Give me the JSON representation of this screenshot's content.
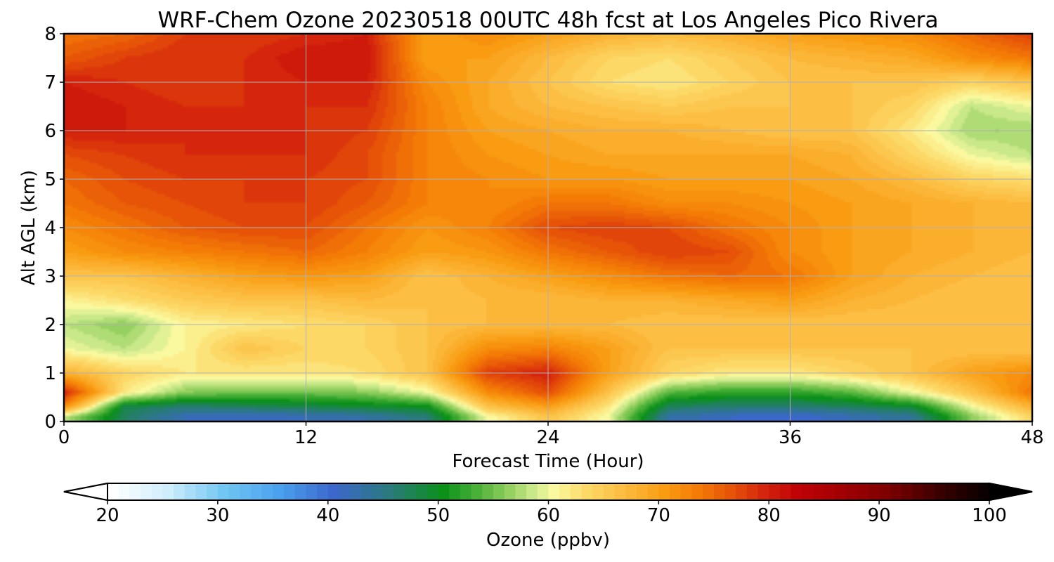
{
  "chart_data": {
    "type": "heatmap",
    "title": "WRF-Chem Ozone  20230518 00UTC 48h fcst at Los Angeles Pico Rivera",
    "xlabel": "Forecast Time (Hour)",
    "ylabel": "Alt AGL (km)",
    "xlim": [
      0,
      48
    ],
    "ylim": [
      0,
      8
    ],
    "xticks": [
      0,
      12,
      24,
      36,
      48
    ],
    "yticks": [
      0,
      1,
      2,
      3,
      4,
      5,
      6,
      7,
      8
    ],
    "grid": true,
    "x": [
      0,
      3,
      6,
      9,
      12,
      15,
      18,
      21,
      24,
      27,
      30,
      33,
      36,
      39,
      42,
      45,
      48
    ],
    "y": [
      0.1,
      0.3,
      0.6,
      1.0,
      1.5,
      2.0,
      2.5,
      3.0,
      3.5,
      4.0,
      4.5,
      5.0,
      5.5,
      6.0,
      6.5,
      7.0,
      7.5,
      8.0
    ],
    "values": [
      [
        58,
        47,
        42,
        41,
        42,
        43,
        46,
        60,
        66,
        60,
        43,
        41,
        40,
        42,
        44,
        56,
        64
      ],
      [
        72,
        48,
        46,
        47,
        48,
        49,
        50,
        66,
        70,
        62,
        47,
        46,
        46,
        47,
        49,
        60,
        68
      ],
      [
        80,
        62,
        56,
        55,
        55,
        56,
        60,
        72,
        77,
        66,
        54,
        52,
        52,
        54,
        60,
        66,
        74
      ],
      [
        68,
        64,
        62,
        62,
        62,
        63,
        66,
        78,
        80,
        70,
        64,
        62,
        62,
        64,
        66,
        70,
        72
      ],
      [
        60,
        58,
        61,
        66,
        64,
        64,
        66,
        72,
        73,
        70,
        66,
        66,
        66,
        66,
        66,
        66,
        66
      ],
      [
        58,
        56,
        61,
        62,
        63,
        64,
        66,
        67,
        67,
        67,
        66,
        66,
        66,
        66,
        66,
        66,
        66
      ],
      [
        61,
        63,
        65,
        66,
        66,
        67,
        66,
        67,
        67,
        68,
        68,
        69,
        70,
        68,
        67,
        66,
        66
      ],
      [
        66,
        66,
        68,
        70,
        71,
        70,
        66,
        68,
        70,
        72,
        74,
        75,
        74,
        70,
        68,
        67,
        66
      ],
      [
        70,
        72,
        73,
        74,
        75,
        73,
        70,
        71,
        74,
        76,
        78,
        77,
        72,
        70,
        69,
        68,
        67
      ],
      [
        72,
        74,
        76,
        77,
        77,
        74,
        71,
        73,
        77,
        78,
        77,
        74,
        72,
        70,
        69,
        68,
        68
      ],
      [
        74,
        76,
        77,
        78,
        78,
        76,
        73,
        72,
        74,
        74,
        72,
        72,
        71,
        70,
        69,
        68,
        67
      ],
      [
        75,
        77,
        78,
        78,
        78,
        77,
        73,
        72,
        71,
        71,
        70,
        70,
        70,
        69,
        67,
        64,
        63
      ],
      [
        77,
        78,
        79,
        79,
        79,
        77,
        73,
        71,
        70,
        69,
        69,
        69,
        69,
        68,
        64,
        60,
        58
      ],
      [
        80,
        80,
        79,
        79,
        79,
        78,
        73,
        70,
        69,
        68,
        68,
        67,
        66,
        66,
        62,
        57,
        57
      ],
      [
        81,
        80,
        79,
        79,
        79,
        79,
        73,
        69,
        67,
        66,
        65,
        66,
        66,
        66,
        64,
        58,
        60
      ],
      [
        80,
        79,
        78,
        79,
        80,
        80,
        72,
        69,
        66,
        63,
        62,
        64,
        66,
        66,
        66,
        64,
        66
      ],
      [
        76,
        78,
        79,
        79,
        81,
        81,
        70,
        70,
        67,
        64,
        63,
        65,
        67,
        68,
        69,
        72,
        74
      ],
      [
        74,
        75,
        78,
        78,
        79,
        80,
        70,
        72,
        70,
        68,
        67,
        68,
        70,
        71,
        72,
        75,
        78
      ]
    ],
    "colorbar": {
      "label": "Ozone  (ppbv)",
      "min": 20,
      "max": 100,
      "ticks": [
        20,
        30,
        40,
        50,
        60,
        70,
        80,
        90,
        100
      ],
      "extend": "both"
    },
    "colormap": [
      [
        20,
        "#ffffff"
      ],
      [
        25,
        "#cfeefc"
      ],
      [
        30,
        "#72c6f2"
      ],
      [
        35,
        "#4aa2ee"
      ],
      [
        40,
        "#3c67cc"
      ],
      [
        45,
        "#2a7a7e"
      ],
      [
        50,
        "#0b9018"
      ],
      [
        53,
        "#4ab138"
      ],
      [
        56,
        "#95d060"
      ],
      [
        58,
        "#c9e88a"
      ],
      [
        60,
        "#fbf9a0"
      ],
      [
        63,
        "#fcd866"
      ],
      [
        66,
        "#fcbf44"
      ],
      [
        70,
        "#f99c12"
      ],
      [
        73,
        "#f47c06"
      ],
      [
        76,
        "#e75408"
      ],
      [
        79,
        "#d5260d"
      ],
      [
        82,
        "#c10206"
      ],
      [
        86,
        "#a30004"
      ],
      [
        90,
        "#800000"
      ],
      [
        95,
        "#3a0000"
      ],
      [
        100,
        "#000000"
      ]
    ]
  }
}
